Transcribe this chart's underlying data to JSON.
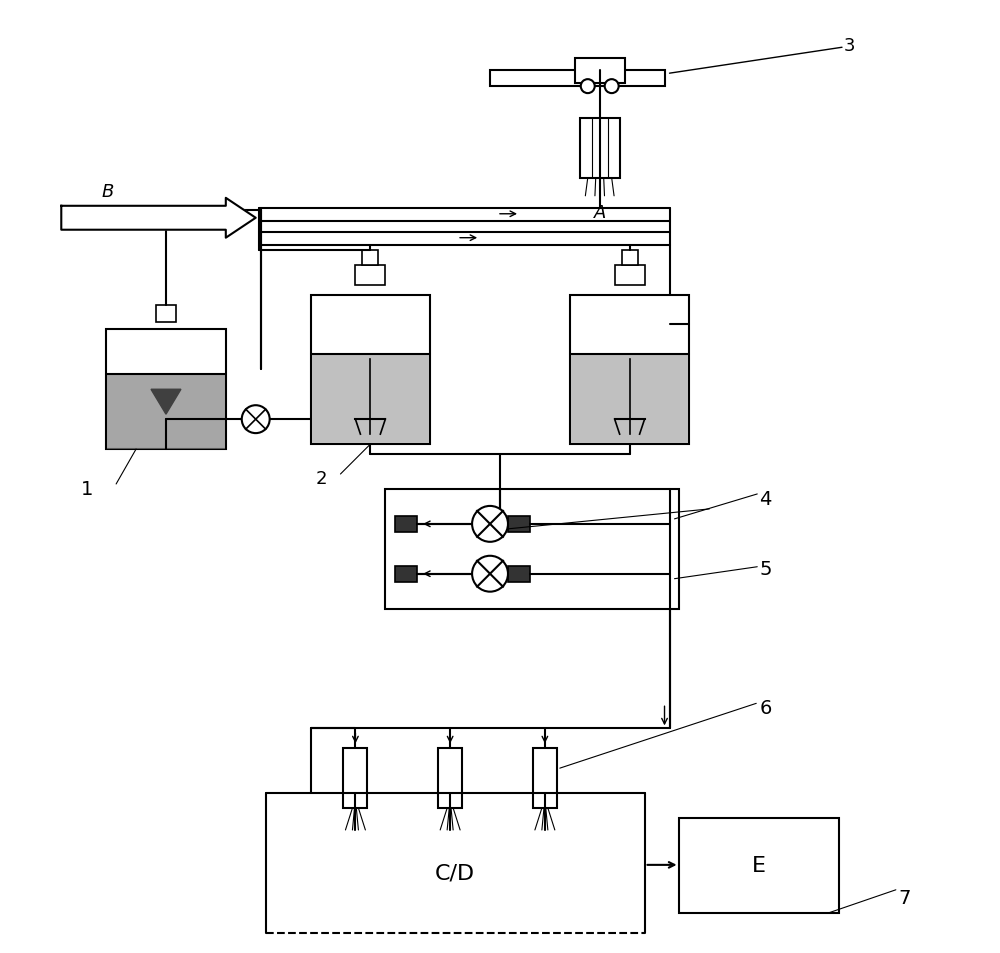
{
  "bg_color": "#ffffff",
  "lc": "#000000",
  "lw": 1.5,
  "label_B": "B",
  "label_A": "A",
  "label_1": "1",
  "label_2": "2",
  "label_3": "3",
  "label_4": "4",
  "label_5": "5",
  "label_6": "6",
  "label_7": "7",
  "label_CD": "C/D",
  "label_E": "E",
  "fs": 13
}
